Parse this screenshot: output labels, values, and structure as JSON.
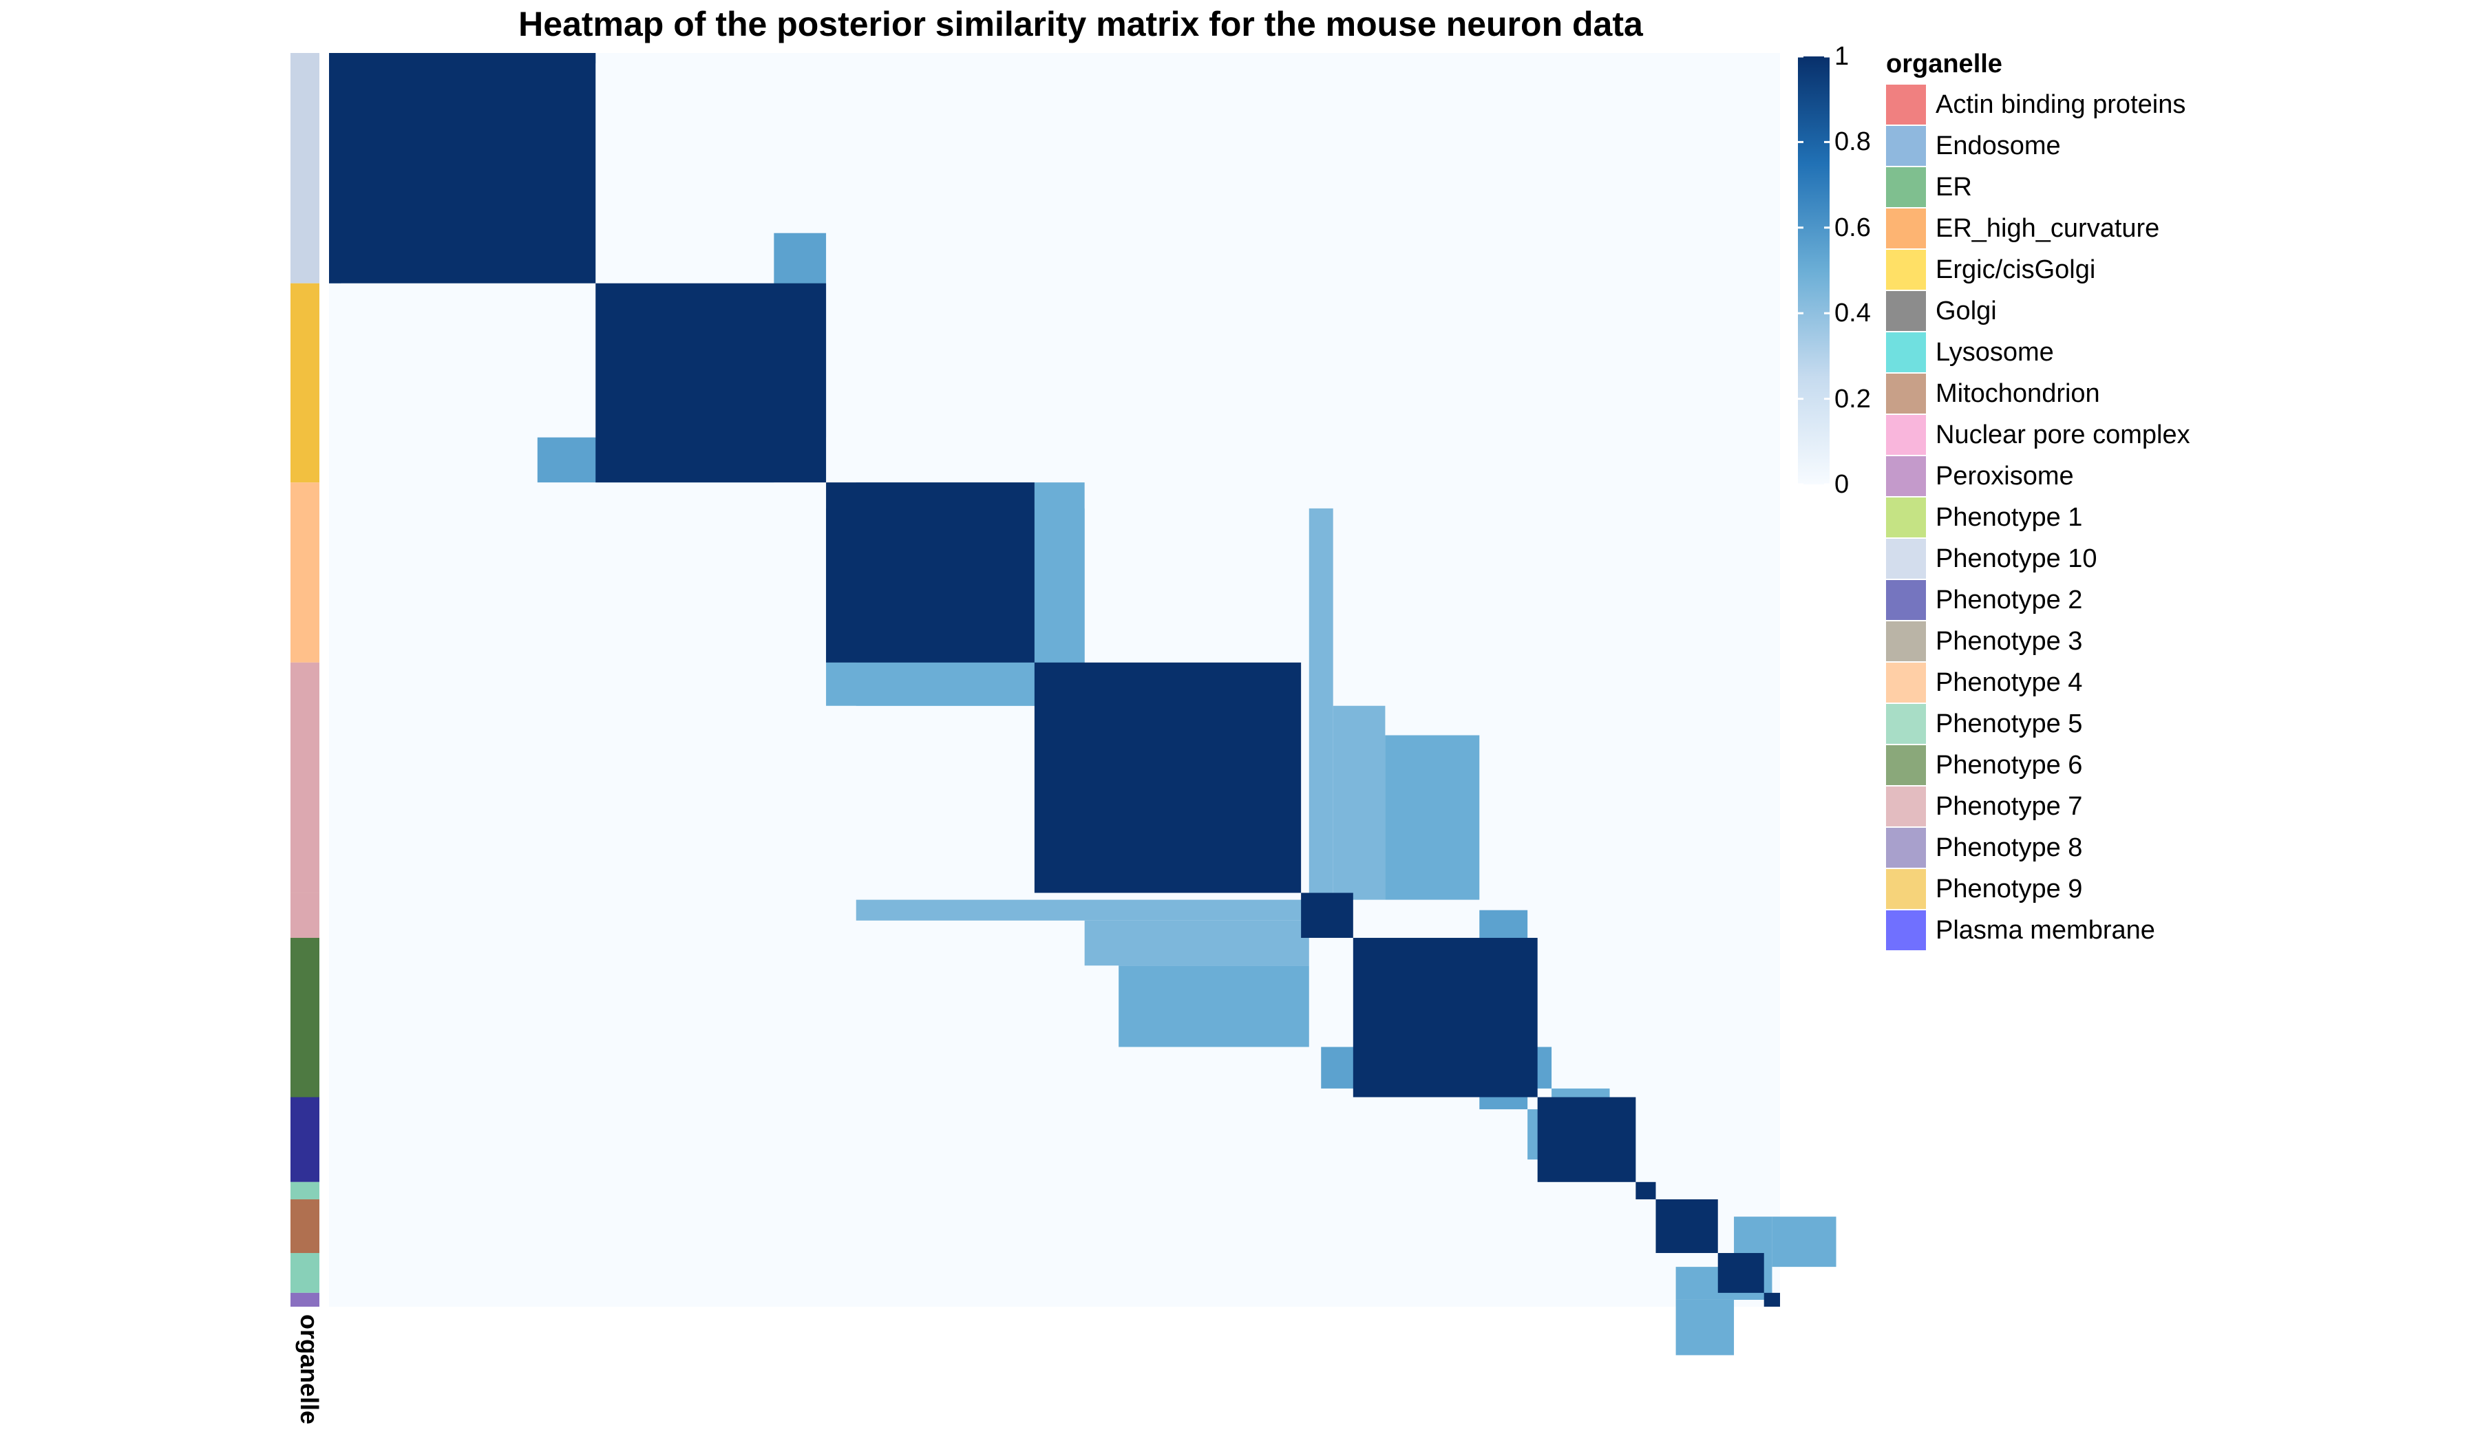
{
  "chart_data": {
    "type": "heatmap",
    "title": "Heatmap of the posterior similarity matrix for the mouse neuron data",
    "xlabel": "",
    "ylabel": "",
    "value_range": [
      0,
      1
    ],
    "colorbar": {
      "ticks": [
        0,
        0.2,
        0.4,
        0.6,
        0.8,
        1
      ],
      "tick_labels": [
        "0",
        "0.2",
        "0.4",
        "0.6",
        "0.8",
        "1"
      ],
      "colors": [
        "#f7fbff",
        "#c6dbef",
        "#6baed6",
        "#2171b5",
        "#08306b"
      ]
    },
    "annotation": {
      "name": "organelle",
      "legend_title": "organelle",
      "categories": [
        {
          "label": "Actin binding proteins",
          "color": "#f08080"
        },
        {
          "label": "Endosome",
          "color": "#8fb8de"
        },
        {
          "label": "ER",
          "color": "#7fbf8f"
        },
        {
          "label": "ER_high_curvature",
          "color": "#fdb472"
        },
        {
          "label": "Ergic/cisGolgi",
          "color": "#ffe066"
        },
        {
          "label": "Golgi",
          "color": "#8c8c8c"
        },
        {
          "label": "Lysosome",
          "color": "#70e0e0"
        },
        {
          "label": "Mitochondrion",
          "color": "#c8a088"
        },
        {
          "label": "Nuclear pore complex",
          "color": "#f9b6dc"
        },
        {
          "label": "Peroxisome",
          "color": "#c49acb"
        },
        {
          "label": "Phenotype 1",
          "color": "#c5e384"
        },
        {
          "label": "Phenotype 10",
          "color": "#d3dded"
        },
        {
          "label": "Phenotype 2",
          "color": "#7575bf"
        },
        {
          "label": "Phenotype 3",
          "color": "#bab4a6"
        },
        {
          "label": "Phenotype 4",
          "color": "#ffcfa6"
        },
        {
          "label": "Phenotype 5",
          "color": "#a8ddc6"
        },
        {
          "label": "Phenotype 6",
          "color": "#8aa87a"
        },
        {
          "label": "Phenotype 7",
          "color": "#e3bcc0"
        },
        {
          "label": "Phenotype 8",
          "color": "#a8a0cc"
        },
        {
          "label": "Phenotype 9",
          "color": "#f6d37a"
        },
        {
          "label": "Plasma membrane",
          "color": "#7070ff"
        }
      ]
    },
    "clusters": [
      {
        "label": "Phenotype 10",
        "size": 13.3,
        "annotation_color": "#c8d4e6"
      },
      {
        "label": "Phenotype 9",
        "size": 11.5,
        "annotation_color": "#f2c040"
      },
      {
        "label": "Phenotype 4",
        "size": 10.4,
        "annotation_color": "#ffc08a"
      },
      {
        "label": "Phenotype 7",
        "size": 13.3,
        "annotation_color": "#dca8b0"
      },
      {
        "label": "Phenotype 8",
        "size": 2.6,
        "annotation_color": "#dca8b0"
      },
      {
        "label": "Phenotype 6",
        "size": 9.2,
        "annotation_color": "#4e7a42"
      },
      {
        "label": "Phenotype 2",
        "size": 4.9,
        "annotation_color": "#303096"
      },
      {
        "label": "Phenotype 5",
        "size": 1.0,
        "annotation_color": "#88d0b8"
      },
      {
        "label": "Mitochondrion",
        "size": 3.1,
        "annotation_color": "#b07050"
      },
      {
        "label": "Phenotype 5",
        "size": 2.3,
        "annotation_color": "#88d0b8"
      },
      {
        "label": "Plasma membrane",
        "size": 0.8,
        "annotation_color": "#8a70c0"
      }
    ],
    "diagonal_similarity": [
      1,
      1,
      1,
      1,
      1,
      1,
      1,
      1,
      1,
      1,
      1
    ],
    "off_diagonal_similarity": [
      {
        "rows": [
          0.0,
          0.6
        ],
        "cols": [
          0.6,
          13.3
        ],
        "value": 0.6
      },
      {
        "rows": [
          22.2,
          24.8
        ],
        "cols": [
          10.4,
          22.2
        ],
        "value": 0.55
      },
      {
        "rows": [
          26.3,
          35.2
        ],
        "cols": [
          24.8,
          37.7
        ],
        "value": 0.5
      },
      {
        "rows": [
          35.2,
          37.7
        ],
        "cols": [
          24.8,
          37.7
        ],
        "value": 0.5
      },
      {
        "rows": [
          35.2,
          37.7
        ],
        "cols": [
          35.2,
          37.7
        ],
        "value": 0.5
      },
      {
        "rows": [
          48.9,
          50.1
        ],
        "cols": [
          26.3,
          48.9
        ],
        "value": 0.45
      },
      {
        "rows": [
          50.1,
          52.7
        ],
        "cols": [
          37.7,
          48.9
        ],
        "value": 0.45
      },
      {
        "rows": [
          52.7,
          57.4
        ],
        "cols": [
          39.4,
          48.9
        ],
        "value": 0.5
      },
      {
        "rows": [
          57.4,
          59.8
        ],
        "cols": [
          49.5,
          61.0
        ],
        "value": 0.55
      },
      {
        "rows": [
          59.8,
          61.0
        ],
        "cols": [
          61.0,
          63.9
        ],
        "value": 0.5
      },
      {
        "rows": [
          67.2,
          70.1
        ],
        "cols": [
          72.0,
          75.2
        ],
        "value": 0.5
      },
      {
        "rows": [
          70.1,
          72.0
        ],
        "cols": [
          67.2,
          72.0
        ],
        "value": 0.5
      }
    ]
  }
}
